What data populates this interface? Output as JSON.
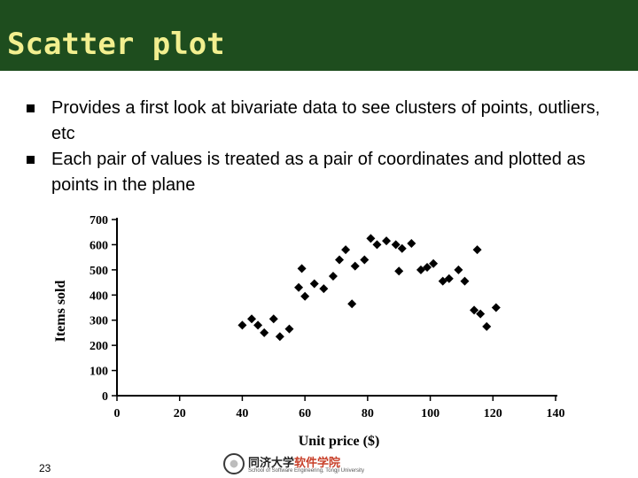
{
  "slide": {
    "title": "Scatter plot",
    "bullets": [
      "Provides a first look at bivariate data to see clusters of points, outliers, etc",
      "Each pair of values is treated as a pair of coordinates and plotted as points in the plane"
    ],
    "page_number": "23",
    "colors": {
      "title_bar": "#1e4d1e",
      "title_text": "#f2ef8f"
    }
  },
  "logo": {
    "cn_part1": "同济大学",
    "cn_part2": "软件学院",
    "en": "School of Software Engineering, Tongji University"
  },
  "chart_data": {
    "type": "scatter",
    "xlabel": "Unit price ($)",
    "ylabel": "Items sold",
    "xlim": [
      0,
      140
    ],
    "ylim": [
      0,
      700
    ],
    "xticks": [
      0,
      20,
      40,
      60,
      80,
      100,
      120,
      140
    ],
    "yticks": [
      0,
      100,
      200,
      300,
      400,
      500,
      600,
      700
    ],
    "grid": false,
    "marker": "diamond",
    "points": [
      {
        "x": 40,
        "y": 280
      },
      {
        "x": 43,
        "y": 305
      },
      {
        "x": 45,
        "y": 280
      },
      {
        "x": 47,
        "y": 250
      },
      {
        "x": 50,
        "y": 305
      },
      {
        "x": 52,
        "y": 235
      },
      {
        "x": 55,
        "y": 265
      },
      {
        "x": 58,
        "y": 430
      },
      {
        "x": 59,
        "y": 505
      },
      {
        "x": 60,
        "y": 395
      },
      {
        "x": 63,
        "y": 445
      },
      {
        "x": 66,
        "y": 425
      },
      {
        "x": 69,
        "y": 475
      },
      {
        "x": 71,
        "y": 540
      },
      {
        "x": 73,
        "y": 580
      },
      {
        "x": 75,
        "y": 365
      },
      {
        "x": 76,
        "y": 515
      },
      {
        "x": 79,
        "y": 540
      },
      {
        "x": 81,
        "y": 625
      },
      {
        "x": 83,
        "y": 600
      },
      {
        "x": 86,
        "y": 615
      },
      {
        "x": 89,
        "y": 600
      },
      {
        "x": 90,
        "y": 495
      },
      {
        "x": 91,
        "y": 585
      },
      {
        "x": 94,
        "y": 605
      },
      {
        "x": 97,
        "y": 500
      },
      {
        "x": 99,
        "y": 510
      },
      {
        "x": 101,
        "y": 525
      },
      {
        "x": 104,
        "y": 455
      },
      {
        "x": 106,
        "y": 465
      },
      {
        "x": 109,
        "y": 500
      },
      {
        "x": 111,
        "y": 455
      },
      {
        "x": 114,
        "y": 340
      },
      {
        "x": 115,
        "y": 580
      },
      {
        "x": 116,
        "y": 325
      },
      {
        "x": 118,
        "y": 275
      },
      {
        "x": 121,
        "y": 350
      }
    ]
  }
}
